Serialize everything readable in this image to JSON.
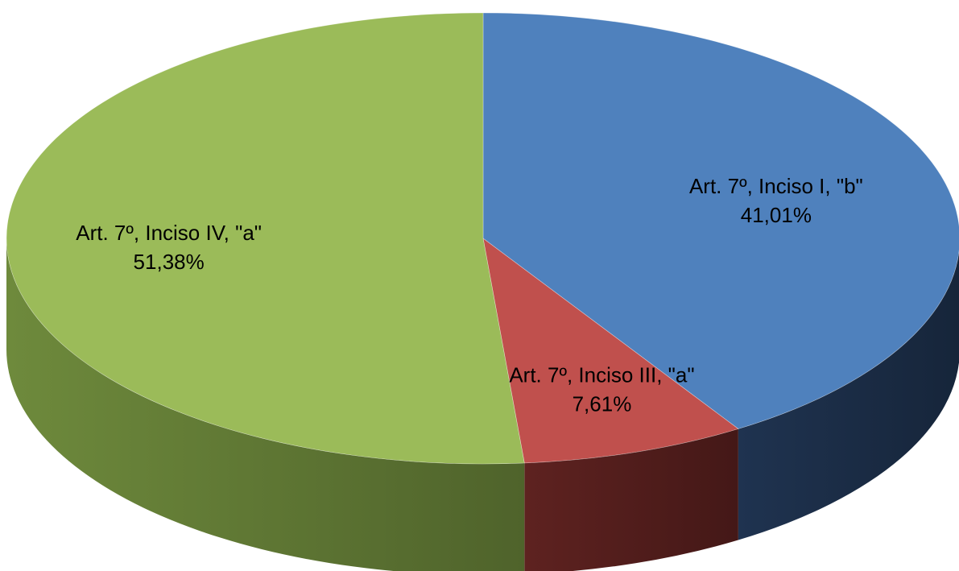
{
  "chart_data": {
    "type": "pie",
    "style": "3d",
    "slices": [
      {
        "label": "Art. 7º, Inciso I, \"b\"",
        "value": 41.01,
        "value_label": "41,01%",
        "color": "#4F81BD",
        "side_color": "#1F3350"
      },
      {
        "label": "Art. 7º, Inciso III, \"a\"",
        "value": 7.61,
        "value_label": "7,61%",
        "color": "#C0504D",
        "side_color": "#5E2220"
      },
      {
        "label": "Art. 7º, Inciso IV, \"a\"",
        "value": 51.38,
        "value_label": "51,38%",
        "color": "#9BBB59",
        "side_color": "#6E8A3C"
      }
    ]
  }
}
